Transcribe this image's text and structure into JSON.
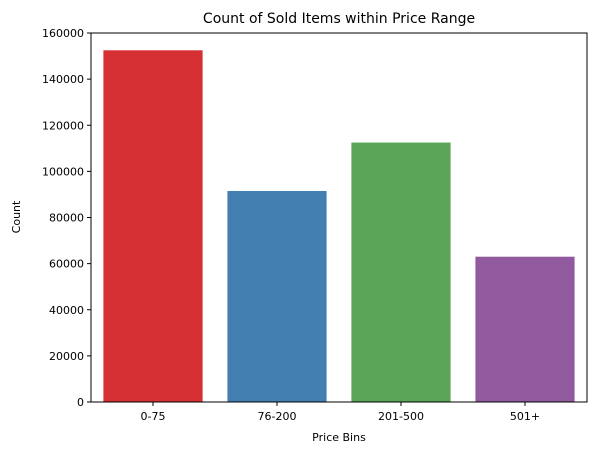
{
  "chart_data": {
    "type": "bar",
    "title": "Count of Sold Items within Price Range",
    "xlabel": "Price Bins",
    "ylabel": "Count",
    "categories": [
      "0-75",
      "76-200",
      "201-500",
      "501+"
    ],
    "values": [
      152500,
      91500,
      112500,
      63000
    ],
    "colors": [
      "#d62f34",
      "#447fb2",
      "#5aa558",
      "#915a9e"
    ],
    "ylim": [
      0,
      160000
    ],
    "yticks": [
      0,
      20000,
      40000,
      60000,
      80000,
      100000,
      120000,
      140000,
      160000
    ],
    "grid": false,
    "legend": "none"
  }
}
